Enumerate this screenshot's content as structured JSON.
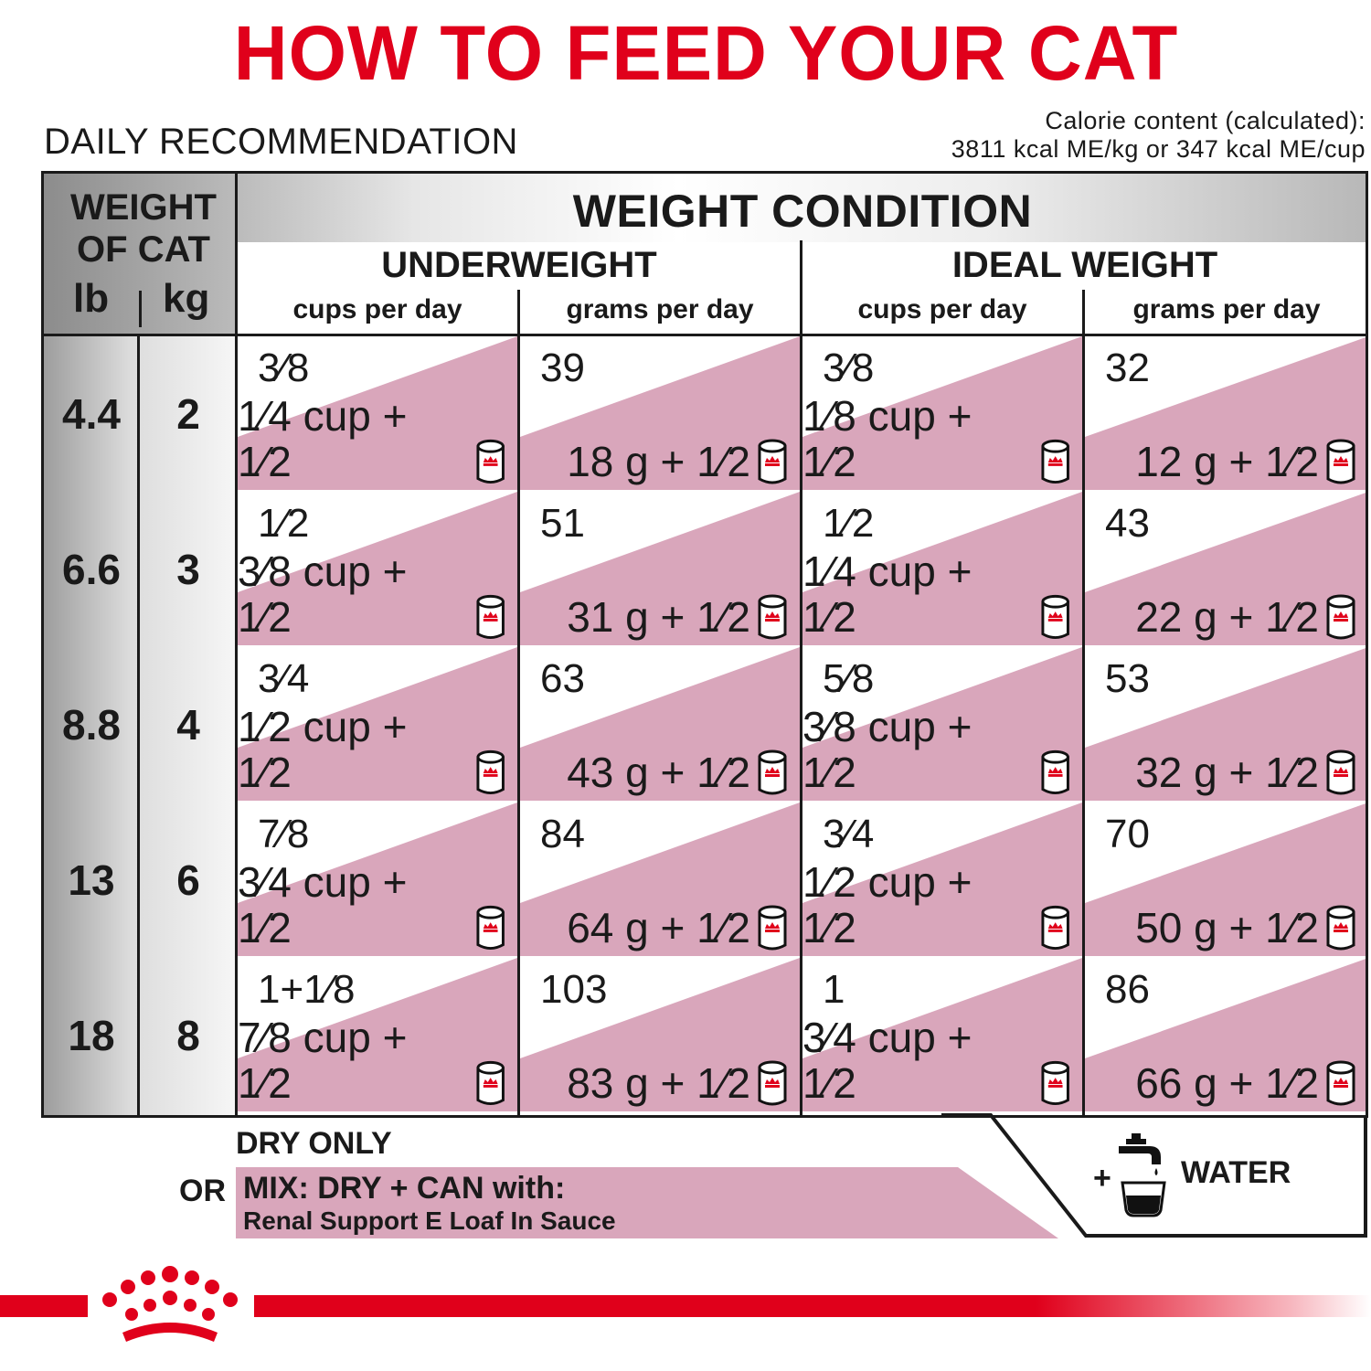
{
  "title": "HOW TO FEED YOUR CAT",
  "daily_recommendation": "DAILY RECOMMENDATION",
  "calorie": {
    "line1": "Calorie content (calculated):",
    "line2": "3811 kcal ME/kg or 347 kcal ME/cup"
  },
  "table": {
    "weight_label_line1": "WEIGHT",
    "weight_label_line2": "OF CAT",
    "lb": "lb",
    "kg": "kg",
    "condition": "WEIGHT CONDITION",
    "groups": [
      "UNDERWEIGHT",
      "IDEAL WEIGHT"
    ],
    "sub_headers": [
      "cups per day",
      "grams per day",
      "cups per day",
      "grams per day"
    ],
    "rows": [
      {
        "lb": "4.4",
        "kg": "2",
        "cells": [
          {
            "top": "3⁄8",
            "bottom": "1⁄4 cup + 1⁄2"
          },
          {
            "top": "39",
            "bottom": "18 g + 1⁄2"
          },
          {
            "top": "3⁄8",
            "bottom": "1⁄8 cup + 1⁄2"
          },
          {
            "top": "32",
            "bottom": "12 g + 1⁄2"
          }
        ]
      },
      {
        "lb": "6.6",
        "kg": "3",
        "cells": [
          {
            "top": "1⁄2",
            "bottom": "3⁄8 cup + 1⁄2"
          },
          {
            "top": "51",
            "bottom": "31 g + 1⁄2"
          },
          {
            "top": "1⁄2",
            "bottom": "1⁄4 cup + 1⁄2"
          },
          {
            "top": "43",
            "bottom": "22 g + 1⁄2"
          }
        ]
      },
      {
        "lb": "8.8",
        "kg": "4",
        "cells": [
          {
            "top": "3⁄4",
            "bottom": "1⁄2 cup + 1⁄2"
          },
          {
            "top": "63",
            "bottom": "43 g + 1⁄2"
          },
          {
            "top": "5⁄8",
            "bottom": "3⁄8 cup + 1⁄2"
          },
          {
            "top": "53",
            "bottom": "32 g + 1⁄2"
          }
        ]
      },
      {
        "lb": "13",
        "kg": "6",
        "cells": [
          {
            "top": "7⁄8",
            "bottom": "3⁄4 cup + 1⁄2"
          },
          {
            "top": "84",
            "bottom": "64 g + 1⁄2"
          },
          {
            "top": "3⁄4",
            "bottom": "1⁄2 cup + 1⁄2"
          },
          {
            "top": "70",
            "bottom": "50 g + 1⁄2"
          }
        ]
      },
      {
        "lb": "18",
        "kg": "8",
        "cells": [
          {
            "top": "1+1⁄8",
            "bottom": "7⁄8 cup + 1⁄2"
          },
          {
            "top": "103",
            "bottom": "83 g + 1⁄2"
          },
          {
            "top": "1",
            "bottom": "3⁄4 cup + 1⁄2"
          },
          {
            "top": "86",
            "bottom": "66 g + 1⁄2"
          }
        ]
      }
    ]
  },
  "footer": {
    "dry_only": "DRY ONLY",
    "or": "OR",
    "mix_title": "MIX: DRY + CAN with:",
    "mix_sub": "Renal Support E Loaf In Sauce",
    "plus": "+",
    "water": "WATER"
  },
  "icons": {
    "can": "can-icon",
    "faucet": "water-faucet-icon",
    "logo": "royal-canin-crown-logo"
  },
  "colors": {
    "brand_red": "#e0001b",
    "pink": "#d9a6bb"
  }
}
